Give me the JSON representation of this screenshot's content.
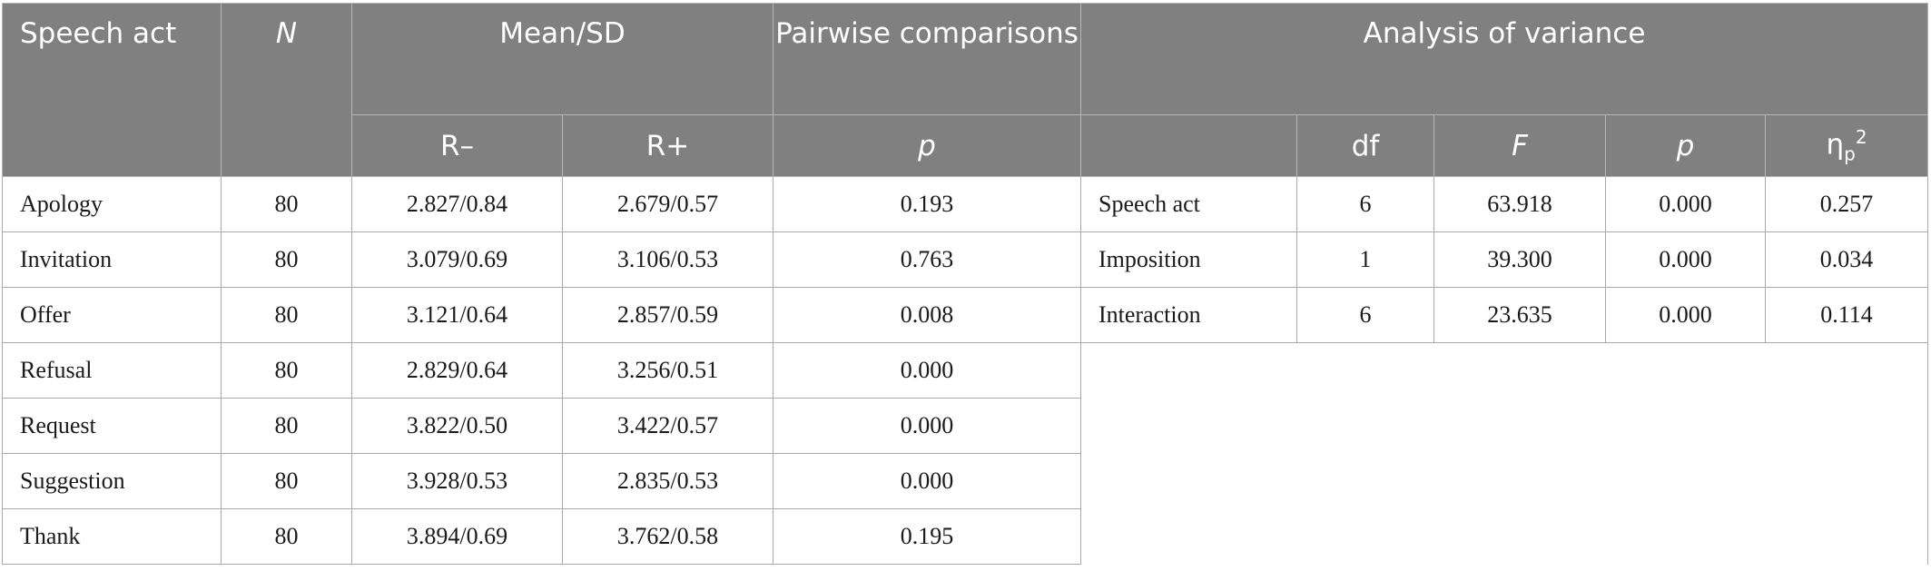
{
  "header": {
    "speech_act": "Speech act",
    "n": "N",
    "mean_sd": "Mean/SD",
    "pairwise": "Pairwise comparisons",
    "anova": "Analysis of variance",
    "r_minus": "R–",
    "r_plus": "R+",
    "p": "p",
    "df": "df",
    "f": "F",
    "p2": "p",
    "eta": "η",
    "eta_sub": "p",
    "eta_sup": "2"
  },
  "rows": [
    {
      "act": "Apology",
      "n": "80",
      "rminus": "2.827/0.84",
      "rplus": "2.679/0.57",
      "p": "0.193"
    },
    {
      "act": "Invitation",
      "n": "80",
      "rminus": "3.079/0.69",
      "rplus": "3.106/0.53",
      "p": "0.763"
    },
    {
      "act": "Offer",
      "n": "80",
      "rminus": "3.121/0.64",
      "rplus": "2.857/0.59",
      "p": "0.008"
    },
    {
      "act": "Refusal",
      "n": "80",
      "rminus": "2.829/0.64",
      "rplus": "3.256/0.51",
      "p": "0.000"
    },
    {
      "act": "Request",
      "n": "80",
      "rminus": "3.822/0.50",
      "rplus": "3.422/0.57",
      "p": "0.000"
    },
    {
      "act": "Suggestion",
      "n": "80",
      "rminus": "3.928/0.53",
      "rplus": "2.835/0.53",
      "p": "0.000"
    },
    {
      "act": "Thank",
      "n": "80",
      "rminus": "3.894/0.69",
      "rplus": "3.762/0.58",
      "p": "0.195"
    }
  ],
  "anova": [
    {
      "source": "Speech act",
      "df": "6",
      "f": "63.918",
      "p": "0.000",
      "eta": "0.257"
    },
    {
      "source": "Imposition",
      "df": "1",
      "f": "39.300",
      "p": "0.000",
      "eta": "0.034"
    },
    {
      "source": "Interaction",
      "df": "6",
      "f": "23.635",
      "p": "0.000",
      "eta": "0.114"
    }
  ]
}
